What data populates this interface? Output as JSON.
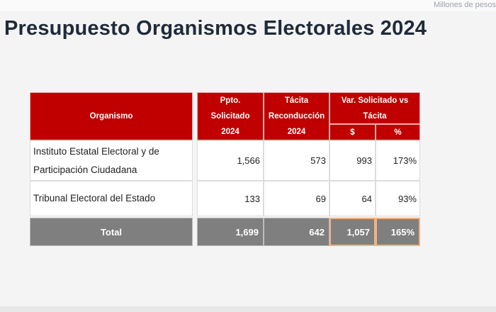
{
  "header": {
    "note": "Millones de pesos",
    "title": "Presupuesto Organismos Electorales 2024"
  },
  "table": {
    "columns": [
      "Organismo",
      "Ppto. Solicitado 2024",
      "Tácita Reconducción 2024",
      "Var. Solicitado vs Tácita"
    ],
    "subcolumns": [
      "$",
      "%"
    ],
    "rows": [
      [
        "Instituto Estatal Electoral y de Participación Ciudadana",
        "1,566",
        "573",
        "993",
        "173%"
      ],
      [
        "Tribunal Electoral del Estado",
        "133",
        "69",
        "64",
        "93%"
      ]
    ],
    "total": [
      "Total",
      "1,699",
      "642",
      "1,057",
      "165%"
    ]
  }
}
